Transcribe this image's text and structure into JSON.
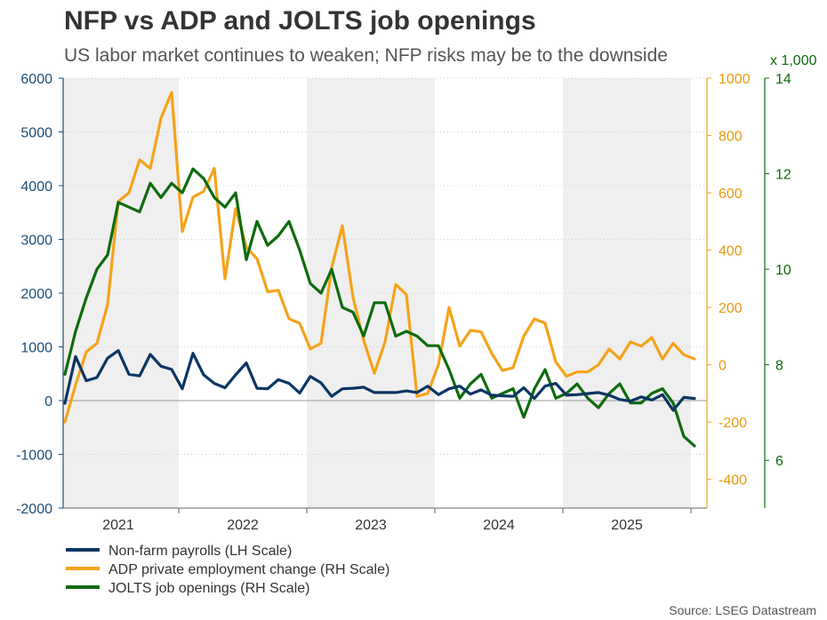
{
  "chart_data": {
    "type": "line",
    "title": "NFP vs ADP and JOLTS job openings",
    "subtitle": "US labor market continues to weaken; NFP risks may be to the downside",
    "source": "Source: LSEG Datastream",
    "rh_multiplier": "x 1,000",
    "x_labels": [
      "2021",
      "2022",
      "2023",
      "2024",
      "2025"
    ],
    "x_range": [
      "2020-09",
      "2025-10"
    ],
    "left_axis": {
      "ylim": [
        -2000,
        6000
      ],
      "ticks": [
        "6000",
        "5000",
        "4000",
        "3000",
        "2000",
        "1000",
        "0",
        "-1000",
        "-2000"
      ]
    },
    "right_axis_adp": {
      "ylim": [
        -500,
        1000
      ],
      "ticks": [
        "1000",
        "800",
        "600",
        "400",
        "200",
        "0",
        "-200",
        "-400"
      ]
    },
    "right_axis_jolts": {
      "ylim": [
        5,
        14
      ],
      "ticks": [
        "14",
        "12",
        "10",
        "8",
        "6"
      ]
    },
    "shaded_years": [
      "2021",
      "2023",
      "2025"
    ],
    "colors": {
      "nfp": "#0b3563",
      "adp": "#f5a31a",
      "jolts": "#0e6b0e",
      "left_axis": "#1f4e79",
      "shade": "#efefef"
    },
    "series": [
      {
        "name": "Non-farm payrolls (LH Scale)",
        "axis": "left",
        "values": [
          -50,
          820,
          370,
          430,
          790,
          930,
          490,
          460,
          860,
          640,
          580,
          220,
          880,
          480,
          320,
          240,
          480,
          700,
          230,
          220,
          390,
          320,
          140,
          450,
          330,
          80,
          220,
          230,
          250,
          150,
          150,
          150,
          180,
          150,
          270,
          110,
          220,
          270,
          120,
          200,
          100,
          90,
          80,
          240,
          40,
          270,
          320,
          100,
          110,
          130,
          150,
          100,
          20,
          -10,
          70,
          10,
          110,
          -180,
          60,
          40
        ]
      },
      {
        "name": "ADP private employment change (RH Scale)",
        "axis": "rh_adp",
        "values": [
          -200,
          -70,
          45,
          75,
          210,
          570,
          600,
          715,
          685,
          860,
          950,
          465,
          585,
          605,
          685,
          300,
          545,
          410,
          370,
          255,
          260,
          160,
          145,
          55,
          75,
          340,
          485,
          235,
          85,
          -30,
          80,
          280,
          245,
          -110,
          -100,
          0,
          200,
          65,
          120,
          115,
          40,
          -20,
          -10,
          100,
          160,
          145,
          10,
          -40,
          -25,
          -25,
          0,
          55,
          20,
          80,
          65,
          95,
          20,
          75,
          35,
          20
        ]
      },
      {
        "name": "JOLTS job openings (RH Scale)",
        "axis": "rh_jolts",
        "values": [
          7.8,
          8.7,
          9.4,
          10.0,
          10.3,
          11.4,
          11.3,
          11.2,
          11.8,
          11.5,
          11.8,
          11.6,
          12.1,
          11.9,
          11.5,
          11.3,
          11.6,
          10.2,
          11.0,
          10.5,
          10.7,
          11.0,
          10.4,
          9.7,
          9.5,
          10.0,
          9.2,
          9.1,
          8.6,
          9.3,
          9.3,
          8.6,
          8.7,
          8.6,
          8.4,
          8.4,
          7.9,
          7.3,
          7.6,
          7.8,
          7.3,
          7.4,
          7.5,
          6.9,
          7.5,
          7.9,
          7.3,
          7.4,
          7.6,
          7.3,
          7.1,
          7.4,
          7.6,
          7.2,
          7.2,
          7.4,
          7.5,
          7.2,
          6.5,
          6.3
        ]
      }
    ]
  }
}
